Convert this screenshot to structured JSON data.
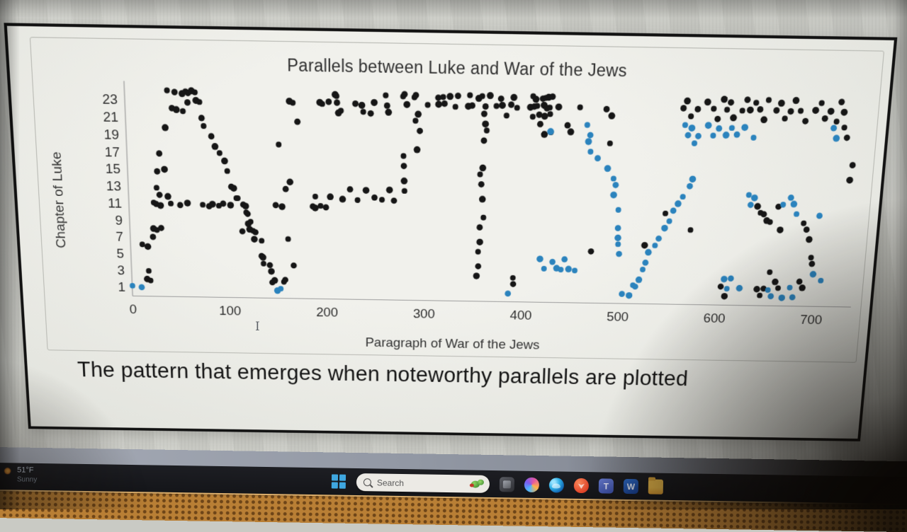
{
  "chart_data": {
    "type": "scatter",
    "title": "Parallels between Luke and War of the Jews",
    "xlabel": "Paragraph of War of the Jews",
    "ylabel": "Chapter of Luke",
    "x_ticks": [
      0,
      100,
      200,
      300,
      400,
      500,
      600,
      700
    ],
    "y_ticks": [
      23,
      21,
      19,
      17,
      15,
      13,
      11,
      9,
      7,
      5,
      3,
      1
    ],
    "xlim": [
      0,
      770
    ],
    "ylim": [
      0,
      25
    ],
    "grid": false,
    "legend": "none",
    "series": [
      {
        "name": "parallel-black",
        "color": "#161616",
        "points": [
          [
            44,
            24
          ],
          [
            48,
            24
          ],
          [
            56,
            24
          ],
          [
            60,
            24
          ],
          [
            63,
            24
          ],
          [
            67,
            24
          ],
          [
            71,
            24
          ],
          [
            64,
            23
          ],
          [
            69,
            23
          ],
          [
            73,
            23
          ],
          [
            46,
            22
          ],
          [
            51,
            22
          ],
          [
            58,
            22
          ],
          [
            77,
            21
          ],
          [
            41,
            20
          ],
          [
            76,
            20
          ],
          [
            84,
            19
          ],
          [
            88,
            18
          ],
          [
            93,
            17
          ],
          [
            33,
            17
          ],
          [
            99,
            16
          ],
          [
            102,
            15
          ],
          [
            28,
            15
          ],
          [
            36,
            15
          ],
          [
            28,
            13
          ],
          [
            104,
            13
          ],
          [
            107,
            13
          ],
          [
            110,
            12
          ],
          [
            33,
            12
          ],
          [
            38,
            12
          ],
          [
            24,
            11
          ],
          [
            27,
            11
          ],
          [
            32,
            11
          ],
          [
            43,
            11
          ],
          [
            53,
            11
          ],
          [
            61,
            11
          ],
          [
            73,
            11
          ],
          [
            80,
            11
          ],
          [
            84,
            11
          ],
          [
            91,
            11
          ],
          [
            96,
            11
          ],
          [
            104,
            11
          ],
          [
            112,
            12
          ],
          [
            114,
            11
          ],
          [
            117,
            11
          ],
          [
            118,
            10
          ],
          [
            120,
            10
          ],
          [
            121,
            9
          ],
          [
            124,
            9
          ],
          [
            116,
            8
          ],
          [
            120,
            8
          ],
          [
            124,
            8
          ],
          [
            127,
            8
          ],
          [
            24,
            8
          ],
          [
            28,
            8
          ],
          [
            33,
            8
          ],
          [
            128,
            7
          ],
          [
            132,
            7
          ],
          [
            22,
            7
          ],
          [
            17,
            6
          ],
          [
            12,
            6
          ],
          [
            134,
            5
          ],
          [
            136,
            5
          ],
          [
            137,
            4
          ],
          [
            140,
            4
          ],
          [
            142,
            3
          ],
          [
            17,
            3
          ],
          [
            144,
            2
          ],
          [
            147,
            2
          ],
          [
            157,
            2
          ],
          [
            159,
            2
          ],
          [
            14,
            2
          ],
          [
            18,
            2
          ],
          [
            148,
            11
          ],
          [
            155,
            11
          ],
          [
            153,
            18
          ],
          [
            160,
            13
          ],
          [
            165,
            14
          ],
          [
            159,
            7
          ],
          [
            165,
            4
          ],
          [
            163,
            23
          ],
          [
            167,
            23
          ],
          [
            172,
            21
          ],
          [
            195,
            23
          ],
          [
            198,
            23
          ],
          [
            201,
            23
          ],
          [
            208,
            24
          ],
          [
            210,
            24
          ],
          [
            211,
            23
          ],
          [
            213,
            22
          ],
          [
            216,
            22
          ],
          [
            231,
            23
          ],
          [
            234,
            23
          ],
          [
            236,
            22
          ],
          [
            244,
            22
          ],
          [
            248,
            23
          ],
          [
            260,
            24
          ],
          [
            262,
            23
          ],
          [
            264,
            22
          ],
          [
            275,
            24
          ],
          [
            277,
            24
          ],
          [
            280,
            23
          ],
          [
            288,
            24
          ],
          [
            290,
            24
          ],
          [
            293,
            22
          ],
          [
            291,
            21
          ],
          [
            292,
            20
          ],
          [
            290,
            18
          ],
          [
            277,
            17
          ],
          [
            278,
            16
          ],
          [
            279,
            14
          ],
          [
            280,
            13
          ],
          [
            270,
            12
          ],
          [
            262,
            13
          ],
          [
            255,
            12
          ],
          [
            248,
            12
          ],
          [
            240,
            13
          ],
          [
            232,
            12
          ],
          [
            225,
            13
          ],
          [
            218,
            12
          ],
          [
            187,
            12
          ],
          [
            185,
            11
          ],
          [
            188,
            11
          ],
          [
            194,
            11
          ],
          [
            200,
            11
          ],
          [
            205,
            12
          ],
          [
            303,
            23
          ],
          [
            310,
            24
          ],
          [
            311,
            23
          ],
          [
            316,
            24
          ],
          [
            318,
            23
          ],
          [
            324,
            24
          ],
          [
            330,
            23
          ],
          [
            333,
            24
          ],
          [
            340,
            23
          ],
          [
            342,
            24
          ],
          [
            345,
            23
          ],
          [
            352,
            24
          ],
          [
            356,
            24
          ],
          [
            360,
            23
          ],
          [
            365,
            24
          ],
          [
            368,
            23
          ],
          [
            373,
            24
          ],
          [
            375,
            23
          ],
          [
            380,
            22
          ],
          [
            385,
            23
          ],
          [
            388,
            24
          ],
          [
            392,
            23
          ],
          [
            356,
            22
          ],
          [
            358,
            21
          ],
          [
            360,
            20
          ],
          [
            358,
            19
          ],
          [
            358,
            16
          ],
          [
            356,
            15
          ],
          [
            358,
            14
          ],
          [
            356,
            12
          ],
          [
            358,
            10
          ],
          [
            355,
            9
          ],
          [
            356,
            7
          ],
          [
            355,
            6
          ],
          [
            356,
            4
          ],
          [
            355,
            3
          ],
          [
            389,
            3
          ],
          [
            390,
            2
          ],
          [
            403,
            23
          ],
          [
            406,
            24
          ],
          [
            408,
            23
          ],
          [
            410,
            24
          ],
          [
            412,
            23
          ],
          [
            414,
            24
          ],
          [
            416,
            23
          ],
          [
            418,
            24
          ],
          [
            420,
            23
          ],
          [
            422,
            24
          ],
          [
            424,
            23
          ],
          [
            427,
            24
          ],
          [
            430,
            23
          ],
          [
            405,
            22
          ],
          [
            412,
            22
          ],
          [
            418,
            22
          ],
          [
            424,
            22
          ],
          [
            415,
            21
          ],
          [
            420,
            20
          ],
          [
            423,
            20
          ],
          [
            440,
            21
          ],
          [
            444,
            20
          ],
          [
            453,
            23
          ],
          [
            480,
            23
          ],
          [
            486,
            22
          ],
          [
            486,
            19
          ],
          [
            468,
            6
          ],
          [
            523,
            7
          ],
          [
            543,
            11
          ],
          [
            556,
            23
          ],
          [
            560,
            24
          ],
          [
            565,
            22
          ],
          [
            572,
            23
          ],
          [
            578,
            24
          ],
          [
            585,
            23
          ],
          [
            590,
            22
          ],
          [
            596,
            24
          ],
          [
            600,
            23
          ],
          [
            604,
            24
          ],
          [
            608,
            22
          ],
          [
            613,
            23
          ],
          [
            618,
            24
          ],
          [
            622,
            23
          ],
          [
            628,
            24
          ],
          [
            633,
            23
          ],
          [
            638,
            22
          ],
          [
            642,
            24
          ],
          [
            647,
            23
          ],
          [
            652,
            24
          ],
          [
            657,
            22
          ],
          [
            663,
            23
          ],
          [
            668,
            24
          ],
          [
            674,
            23
          ],
          [
            680,
            22
          ],
          [
            686,
            23
          ],
          [
            692,
            24
          ],
          [
            697,
            22
          ],
          [
            703,
            23
          ],
          [
            710,
            22
          ],
          [
            714,
            24
          ],
          [
            718,
            23
          ],
          [
            716,
            21
          ],
          [
            720,
            20
          ],
          [
            636,
            12
          ],
          [
            640,
            11
          ],
          [
            644,
            11
          ],
          [
            648,
            10
          ],
          [
            652,
            10
          ],
          [
            656,
            12
          ],
          [
            660,
            9
          ],
          [
            684,
            10
          ],
          [
            688,
            9
          ],
          [
            692,
            8
          ],
          [
            696,
            6
          ],
          [
            698,
            5
          ],
          [
            640,
            2
          ],
          [
            644,
            1
          ],
          [
            648,
            2
          ],
          [
            660,
            3
          ],
          [
            664,
            2
          ],
          [
            686,
            3
          ],
          [
            690,
            2
          ],
          [
            652,
            4
          ],
          [
            728,
            17
          ],
          [
            727,
            15
          ],
          [
            570,
            9
          ],
          [
            605,
            2
          ],
          [
            610,
            1
          ]
        ]
      },
      {
        "name": "parallel-blue",
        "color": "#2b83bd",
        "points": [
          [
            2,
            1
          ],
          [
            8,
            1
          ],
          [
            148,
            1
          ],
          [
            152,
            1
          ],
          [
            386,
            1
          ],
          [
            425,
            20
          ],
          [
            462,
            21
          ],
          [
            466,
            20
          ],
          [
            461,
            19
          ],
          [
            464,
            18
          ],
          [
            472,
            17
          ],
          [
            483,
            16
          ],
          [
            490,
            15
          ],
          [
            493,
            14
          ],
          [
            492,
            13
          ],
          [
            494,
            11
          ],
          [
            495,
            9
          ],
          [
            496,
            8
          ],
          [
            497,
            7
          ],
          [
            499,
            6
          ],
          [
            419,
            5
          ],
          [
            424,
            4
          ],
          [
            429,
            5
          ],
          [
            434,
            4
          ],
          [
            439,
            4
          ],
          [
            443,
            5
          ],
          [
            448,
            4
          ],
          [
            455,
            4
          ],
          [
            505,
            1
          ],
          [
            509,
            1
          ],
          [
            513,
            2
          ],
          [
            516,
            2
          ],
          [
            520,
            3
          ],
          [
            524,
            4
          ],
          [
            527,
            5
          ],
          [
            530,
            6
          ],
          [
            533,
            7
          ],
          [
            537,
            8
          ],
          [
            543,
            9
          ],
          [
            548,
            10
          ],
          [
            552,
            11
          ],
          [
            557,
            12
          ],
          [
            562,
            13
          ],
          [
            565,
            14
          ],
          [
            568,
            15
          ],
          [
            558,
            21
          ],
          [
            562,
            20
          ],
          [
            566,
            21
          ],
          [
            570,
            19
          ],
          [
            574,
            20
          ],
          [
            580,
            21
          ],
          [
            586,
            20
          ],
          [
            592,
            21
          ],
          [
            600,
            20
          ],
          [
            606,
            21
          ],
          [
            612,
            20
          ],
          [
            620,
            21
          ],
          [
            626,
            20
          ],
          [
            706,
            21
          ],
          [
            710,
            20
          ],
          [
            627,
            13
          ],
          [
            630,
            12
          ],
          [
            634,
            13
          ],
          [
            664,
            12
          ],
          [
            668,
            13
          ],
          [
            672,
            12
          ],
          [
            676,
            11
          ],
          [
            700,
            11
          ],
          [
            608,
            3
          ],
          [
            612,
            2
          ],
          [
            616,
            3
          ],
          [
            622,
            2
          ],
          [
            652,
            2
          ],
          [
            656,
            1
          ],
          [
            668,
            1
          ],
          [
            676,
            2
          ],
          [
            680,
            1
          ],
          [
            700,
            4
          ],
          [
            705,
            3
          ]
        ]
      }
    ]
  },
  "caption": "The pattern that emerges when noteworthy parallels are plotted",
  "cursor": {
    "ibeam_glyph": "I"
  },
  "taskbar": {
    "weather": {
      "temperature": "51°F",
      "condition": "Sunny"
    },
    "search": {
      "placeholder": "Search"
    },
    "icons": {
      "word_glyph": "W",
      "teams_glyph": "T"
    }
  }
}
